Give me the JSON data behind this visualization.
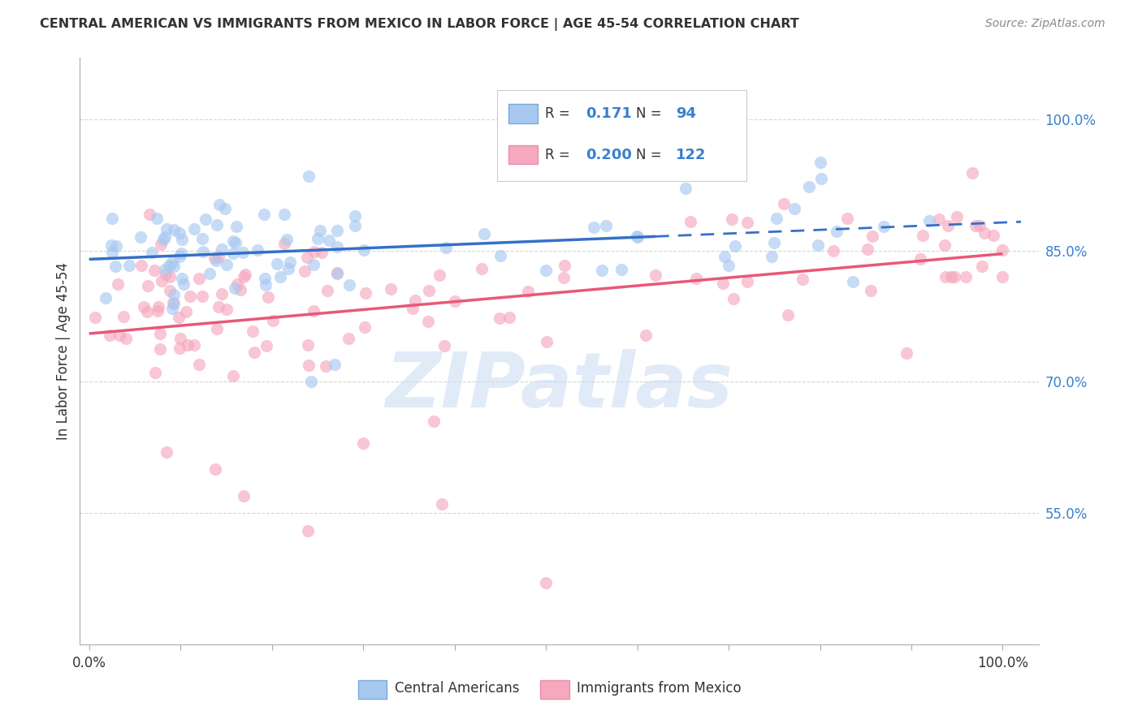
{
  "title": "CENTRAL AMERICAN VS IMMIGRANTS FROM MEXICO IN LABOR FORCE | AGE 45-54 CORRELATION CHART",
  "source": "Source: ZipAtlas.com",
  "ylabel": "In Labor Force | Age 45-54",
  "ytick_values": [
    0.55,
    0.7,
    0.85,
    1.0
  ],
  "ytick_labels": [
    "55.0%",
    "70.0%",
    "85.0%",
    "100.0%"
  ],
  "xlim": [
    -0.01,
    1.04
  ],
  "ylim": [
    0.4,
    1.07
  ],
  "blue_color": "#A8C8F0",
  "pink_color": "#F5A8BE",
  "blue_line_color": "#3570C8",
  "pink_line_color": "#E85878",
  "legend_R_blue": "0.171",
  "legend_N_blue": "94",
  "legend_R_pink": "0.200",
  "legend_N_pink": "122",
  "watermark": "ZIPatlas",
  "title_color": "#333333",
  "source_color": "#888888",
  "axis_label_color": "#333333",
  "tick_label_color_right": "#3880D0",
  "grid_color": "#CCCCCC",
  "legend_text_color": "#333333",
  "legend_value_color": "#3880D0"
}
